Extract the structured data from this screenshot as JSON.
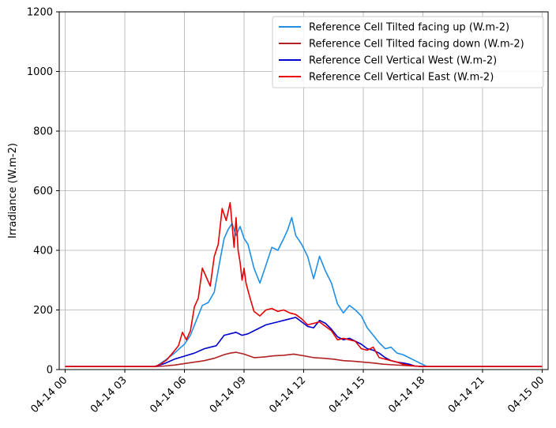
{
  "chart_data": {
    "type": "line",
    "title": "",
    "xlabel": "",
    "ylabel": "Irradiance (W.m-2)",
    "ylim": [
      0,
      1200
    ],
    "yticks": [
      0,
      200,
      400,
      600,
      800,
      1000,
      1200
    ],
    "xlim": [
      -0.3,
      24.3
    ],
    "xticks": [
      0,
      3,
      6,
      9,
      12,
      15,
      18,
      21,
      24
    ],
    "xtick_labels": [
      "04-14 00",
      "04-14 03",
      "04-14 06",
      "04-14 09",
      "04-14 12",
      "04-14 15",
      "04-14 18",
      "04-14 21",
      "04-15 00"
    ],
    "grid": true,
    "legend_position": "top-right",
    "series": [
      {
        "name": "Reference Cell Tilted facing up (W.m-2)",
        "color": "#1f8fe6",
        "x": [
          0,
          4.5,
          4.6,
          5.0,
          5.5,
          6.0,
          6.3,
          6.6,
          6.9,
          7.2,
          7.5,
          7.8,
          8.0,
          8.2,
          8.4,
          8.6,
          8.8,
          9.0,
          9.2,
          9.5,
          9.8,
          10.1,
          10.4,
          10.7,
          11.0,
          11.2,
          11.4,
          11.6,
          11.9,
          12.2,
          12.5,
          12.8,
          13.1,
          13.4,
          13.7,
          14.0,
          14.3,
          14.6,
          14.9,
          15.2,
          15.5,
          15.8,
          16.1,
          16.4,
          16.7,
          17.0,
          17.3,
          17.6,
          17.9,
          18.2,
          24
        ],
        "y": [
          10,
          10,
          12,
          30,
          55,
          85,
          115,
          165,
          215,
          225,
          260,
          370,
          440,
          470,
          490,
          450,
          480,
          440,
          420,
          340,
          290,
          350,
          410,
          400,
          440,
          470,
          510,
          450,
          420,
          380,
          305,
          380,
          330,
          290,
          220,
          190,
          215,
          200,
          180,
          140,
          115,
          90,
          70,
          75,
          55,
          50,
          40,
          30,
          20,
          10,
          10
        ]
      },
      {
        "name": "Reference Cell Tilted facing down (W.m-2)",
        "color": "#b22222",
        "x": [
          0,
          4.5,
          5.0,
          5.5,
          6.0,
          6.5,
          7.0,
          7.5,
          8.0,
          8.3,
          8.6,
          9.0,
          9.5,
          10.0,
          10.5,
          11.0,
          11.5,
          12.0,
          12.5,
          13.0,
          13.5,
          14.0,
          14.5,
          15.0,
          15.5,
          16.0,
          16.5,
          17.0,
          17.5,
          18.0,
          24
        ],
        "y": [
          10,
          10,
          12,
          15,
          20,
          25,
          30,
          38,
          50,
          55,
          58,
          52,
          40,
          42,
          46,
          48,
          52,
          46,
          40,
          38,
          35,
          30,
          28,
          25,
          22,
          18,
          16,
          14,
          12,
          10,
          10
        ]
      },
      {
        "name": "Reference Cell Vertical West (W.m-2)",
        "color": "#0000cc",
        "x": [
          0,
          4.5,
          5.0,
          5.5,
          6.0,
          6.5,
          7.0,
          7.3,
          7.6,
          8.0,
          8.3,
          8.6,
          8.9,
          9.2,
          9.5,
          9.8,
          10.1,
          10.4,
          10.7,
          11.0,
          11.3,
          11.6,
          11.9,
          12.2,
          12.5,
          12.8,
          13.1,
          13.4,
          13.7,
          14.0,
          14.3,
          14.6,
          14.9,
          15.2,
          15.5,
          15.8,
          16.1,
          16.4,
          16.7,
          17.0,
          17.3,
          17.6,
          18.0,
          24
        ],
        "y": [
          10,
          10,
          20,
          35,
          45,
          55,
          70,
          75,
          80,
          115,
          120,
          125,
          115,
          120,
          130,
          140,
          150,
          155,
          160,
          165,
          170,
          175,
          160,
          145,
          140,
          165,
          155,
          135,
          110,
          100,
          105,
          95,
          85,
          70,
          65,
          55,
          40,
          30,
          25,
          22,
          18,
          12,
          10,
          10
        ]
      },
      {
        "name": "Reference Cell Vertical East (W.m-2)",
        "color": "#e60000",
        "x": [
          0,
          4.5,
          4.8,
          5.1,
          5.4,
          5.7,
          5.9,
          6.1,
          6.3,
          6.5,
          6.7,
          6.9,
          7.1,
          7.3,
          7.5,
          7.7,
          7.9,
          8.1,
          8.3,
          8.5,
          8.6,
          8.7,
          8.8,
          8.9,
          9.0,
          9.1,
          9.3,
          9.5,
          9.8,
          10.1,
          10.4,
          10.7,
          11.0,
          11.3,
          11.6,
          11.9,
          12.2,
          12.5,
          12.8,
          13.1,
          13.4,
          13.7,
          14.0,
          14.3,
          14.6,
          14.9,
          15.2,
          15.5,
          15.8,
          16.1,
          16.4,
          16.7,
          17.0,
          17.3,
          17.6,
          18.0,
          24
        ],
        "y": [
          10,
          10,
          18,
          32,
          55,
          80,
          125,
          100,
          130,
          210,
          240,
          340,
          310,
          280,
          380,
          420,
          540,
          500,
          560,
          410,
          510,
          400,
          360,
          300,
          340,
          290,
          240,
          195,
          180,
          200,
          205,
          195,
          200,
          190,
          185,
          170,
          150,
          155,
          160,
          145,
          130,
          100,
          105,
          100,
          95,
          70,
          65,
          75,
          40,
          35,
          30,
          25,
          18,
          14,
          12,
          10,
          10
        ]
      }
    ]
  }
}
